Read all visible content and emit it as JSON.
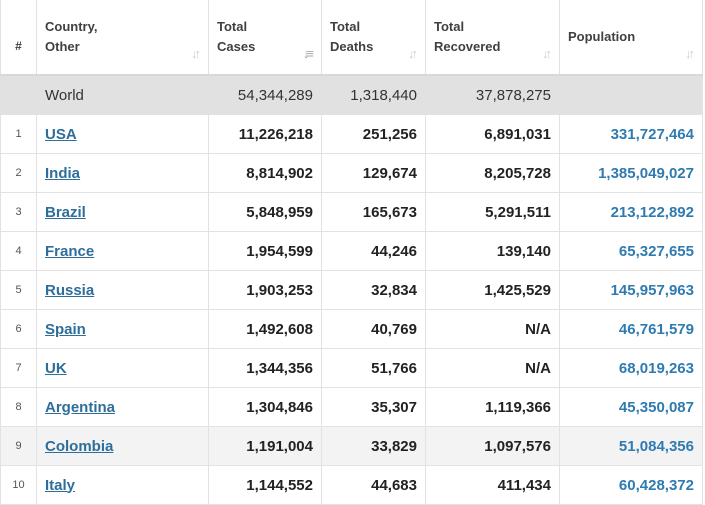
{
  "table": {
    "headers": {
      "rank": "#",
      "country_line1": "Country,",
      "country_line2": "Other",
      "cases_line1": "Total",
      "cases_line2": "Cases",
      "deaths_line1": "Total",
      "deaths_line2": "Deaths",
      "recovered_line1": "Total",
      "recovered_line2": "Recovered",
      "population": "Population"
    },
    "sort_icons": {
      "country": "sort-icon",
      "cases": "sort-descending-icon",
      "deaths": "sort-icon",
      "recovered": "sort-icon",
      "population": "sort-icon"
    },
    "world": {
      "rank": "",
      "country": "World",
      "cases": "54,344,289",
      "deaths": "1,318,440",
      "recovered": "37,878,275",
      "population": ""
    },
    "rows": [
      {
        "rank": "1",
        "country": "USA",
        "cases": "11,226,218",
        "deaths": "251,256",
        "recovered": "6,891,031",
        "population": "331,727,464"
      },
      {
        "rank": "2",
        "country": "India",
        "cases": "8,814,902",
        "deaths": "129,674",
        "recovered": "8,205,728",
        "population": "1,385,049,027"
      },
      {
        "rank": "3",
        "country": "Brazil",
        "cases": "5,848,959",
        "deaths": "165,673",
        "recovered": "5,291,511",
        "population": "213,122,892"
      },
      {
        "rank": "4",
        "country": "France",
        "cases": "1,954,599",
        "deaths": "44,246",
        "recovered": "139,140",
        "population": "65,327,655"
      },
      {
        "rank": "5",
        "country": "Russia",
        "cases": "1,903,253",
        "deaths": "32,834",
        "recovered": "1,425,529",
        "population": "145,957,963"
      },
      {
        "rank": "6",
        "country": "Spain",
        "cases": "1,492,608",
        "deaths": "40,769",
        "recovered": "N/A",
        "population": "46,761,579"
      },
      {
        "rank": "7",
        "country": "UK",
        "cases": "1,344,356",
        "deaths": "51,766",
        "recovered": "N/A",
        "population": "68,019,263"
      },
      {
        "rank": "8",
        "country": "Argentina",
        "cases": "1,304,846",
        "deaths": "35,307",
        "recovered": "1,119,366",
        "population": "45,350,087"
      },
      {
        "rank": "9",
        "country": "Colombia",
        "cases": "1,191,004",
        "deaths": "33,829",
        "recovered": "1,097,576",
        "population": "51,084,356"
      },
      {
        "rank": "10",
        "country": "Italy",
        "cases": "1,144,552",
        "deaths": "44,683",
        "recovered": "411,434",
        "population": "60,428,372"
      }
    ],
    "colors": {
      "link": "#2d6e9b",
      "population": "#2f7bb1",
      "world_row_bg": "#e1e1e1",
      "alt_row_bg": "#f3f3f3"
    }
  }
}
